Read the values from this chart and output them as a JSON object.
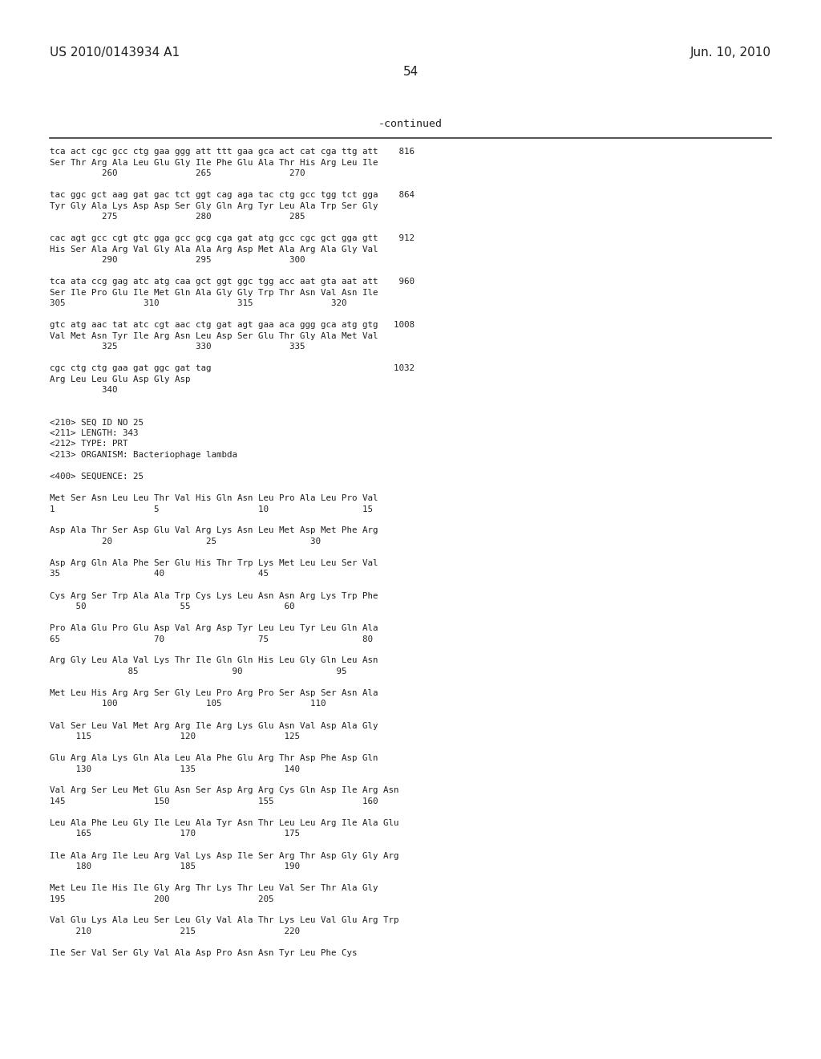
{
  "header_left": "US 2010/0143934 A1",
  "header_right": "Jun. 10, 2010",
  "page_number": "54",
  "continued_label": "-continued",
  "background_color": "#ffffff",
  "text_color": "#231f20",
  "lines": [
    "tca act cgc gcc ctg gaa ggg att ttt gaa gca act cat cga ttg att    816",
    "Ser Thr Arg Ala Leu Glu Gly Ile Phe Glu Ala Thr His Arg Leu Ile",
    "          260               265               270",
    "",
    "tac ggc gct aag gat gac tct ggt cag aga tac ctg gcc tgg tct gga    864",
    "Tyr Gly Ala Lys Asp Asp Ser Gly Gln Arg Tyr Leu Ala Trp Ser Gly",
    "          275               280               285",
    "",
    "cac agt gcc cgt gtc gga gcc gcg cga gat atg gcc cgc gct gga gtt    912",
    "His Ser Ala Arg Val Gly Ala Ala Arg Asp Met Ala Arg Ala Gly Val",
    "          290               295               300",
    "",
    "tca ata ccg gag atc atg caa gct ggt ggc tgg acc aat gta aat att    960",
    "Ser Ile Pro Glu Ile Met Gln Ala Gly Gly Trp Thr Asn Val Asn Ile",
    "305               310               315               320",
    "",
    "gtc atg aac tat atc cgt aac ctg gat agt gaa aca ggg gca atg gtg   1008",
    "Val Met Asn Tyr Ile Arg Asn Leu Asp Ser Glu Thr Gly Ala Met Val",
    "          325               330               335",
    "",
    "cgc ctg ctg gaa gat ggc gat tag                                   1032",
    "Arg Leu Leu Glu Asp Gly Asp",
    "          340",
    "",
    "",
    "<210> SEQ ID NO 25",
    "<211> LENGTH: 343",
    "<212> TYPE: PRT",
    "<213> ORGANISM: Bacteriophage lambda",
    "",
    "<400> SEQUENCE: 25",
    "",
    "Met Ser Asn Leu Leu Thr Val His Gln Asn Leu Pro Ala Leu Pro Val",
    "1                   5                   10                  15",
    "",
    "Asp Ala Thr Ser Asp Glu Val Arg Lys Asn Leu Met Asp Met Phe Arg",
    "          20                  25                  30",
    "",
    "Asp Arg Gln Ala Phe Ser Glu His Thr Trp Lys Met Leu Leu Ser Val",
    "35                  40                  45",
    "",
    "Cys Arg Ser Trp Ala Ala Trp Cys Lys Leu Asn Asn Arg Lys Trp Phe",
    "     50                  55                  60",
    "",
    "Pro Ala Glu Pro Glu Asp Val Arg Asp Tyr Leu Leu Tyr Leu Gln Ala",
    "65                  70                  75                  80",
    "",
    "Arg Gly Leu Ala Val Lys Thr Ile Gln Gln His Leu Gly Gln Leu Asn",
    "               85                  90                  95",
    "",
    "Met Leu His Arg Arg Ser Gly Leu Pro Arg Pro Ser Asp Ser Asn Ala",
    "          100                 105                 110",
    "",
    "Val Ser Leu Val Met Arg Arg Ile Arg Lys Glu Asn Val Asp Ala Gly",
    "     115                 120                 125",
    "",
    "Glu Arg Ala Lys Gln Ala Leu Ala Phe Glu Arg Thr Asp Phe Asp Gln",
    "     130                 135                 140",
    "",
    "Val Arg Ser Leu Met Glu Asn Ser Asp Arg Arg Cys Gln Asp Ile Arg Asn",
    "145                 150                 155                 160",
    "",
    "Leu Ala Phe Leu Gly Ile Leu Ala Tyr Asn Thr Leu Leu Arg Ile Ala Glu",
    "     165                 170                 175",
    "",
    "Ile Ala Arg Ile Leu Arg Val Lys Asp Ile Ser Arg Thr Asp Gly Gly Arg",
    "     180                 185                 190",
    "",
    "Met Leu Ile His Ile Gly Arg Thr Lys Thr Leu Val Ser Thr Ala Gly",
    "195                 200                 205",
    "",
    "Val Glu Lys Ala Leu Ser Leu Gly Val Ala Thr Lys Leu Val Glu Arg Trp",
    "     210                 215                 220",
    "",
    "Ile Ser Val Ser Gly Val Ala Asp Pro Asn Asn Tyr Leu Phe Cys"
  ]
}
